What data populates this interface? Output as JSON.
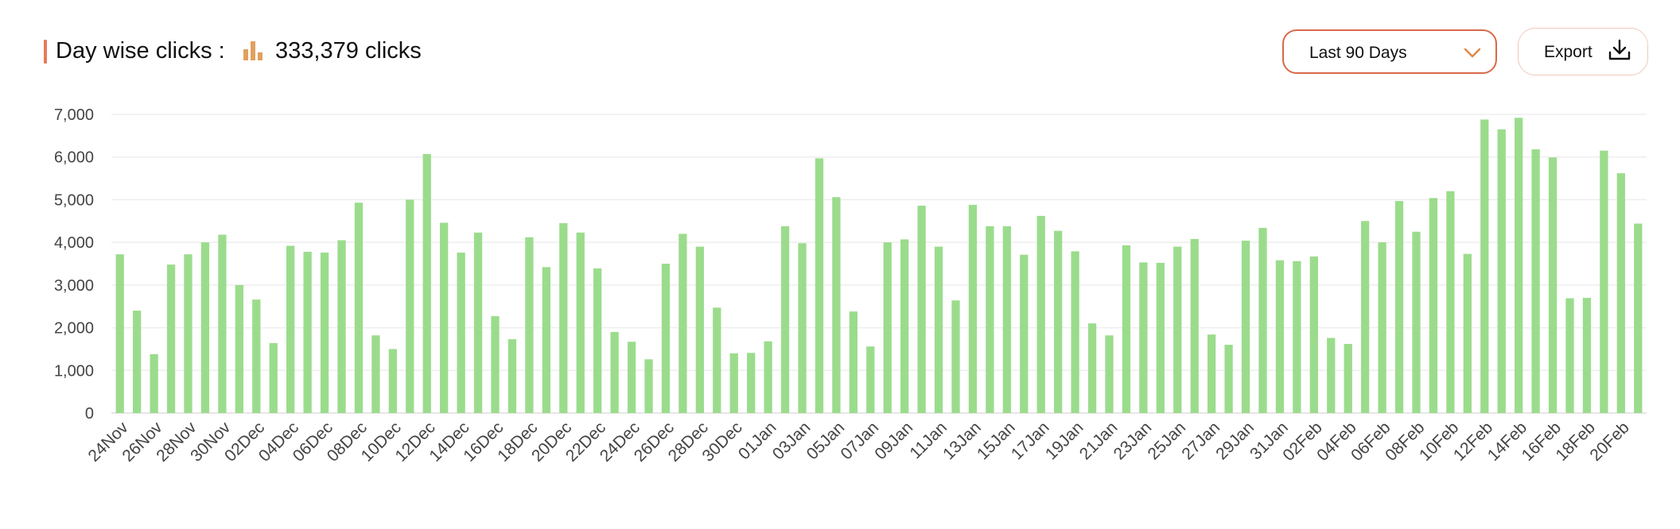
{
  "header": {
    "title": "Day wise clicks :",
    "total_clicks": "333,379 clicks",
    "range_select": {
      "selected": "Last 90 Days"
    },
    "export_label": "Export",
    "icons": [
      "bar-chart-icon",
      "chevron-down-icon",
      "download-icon"
    ]
  },
  "colors": {
    "accent": "#e67a5a",
    "bar": "#9bdc8c",
    "icon": "#e0a05e",
    "border": "#d9694a"
  },
  "chart_data": {
    "type": "bar",
    "title": "",
    "xlabel": "",
    "ylabel": "",
    "ylim": [
      0,
      7000
    ],
    "yticks": [
      "0",
      "1,000",
      "2,000",
      "3,000",
      "4,000",
      "5,000",
      "6,000",
      "7,000"
    ],
    "grid": true,
    "categories": [
      "24Nov",
      "25Nov",
      "26Nov",
      "27Nov",
      "28Nov",
      "29Nov",
      "30Nov",
      "01Dec",
      "02Dec",
      "03Dec",
      "04Dec",
      "05Dec",
      "06Dec",
      "07Dec",
      "08Dec",
      "09Dec",
      "10Dec",
      "11Dec",
      "12Dec",
      "13Dec",
      "14Dec",
      "15Dec",
      "16Dec",
      "17Dec",
      "18Dec",
      "19Dec",
      "20Dec",
      "21Dec",
      "22Dec",
      "23Dec",
      "24Dec",
      "25Dec",
      "26Dec",
      "27Dec",
      "28Dec",
      "29Dec",
      "30Dec",
      "31Dec",
      "01Jan",
      "02Jan",
      "03Jan",
      "04Jan",
      "05Jan",
      "06Jan",
      "07Jan",
      "08Jan",
      "09Jan",
      "10Jan",
      "11Jan",
      "12Jan",
      "13Jan",
      "14Jan",
      "15Jan",
      "16Jan",
      "17Jan",
      "18Jan",
      "19Jan",
      "20Jan",
      "21Jan",
      "22Jan",
      "23Jan",
      "24Jan",
      "25Jan",
      "26Jan",
      "27Jan",
      "28Jan",
      "29Jan",
      "30Jan",
      "31Jan",
      "01Feb",
      "02Feb",
      "03Feb",
      "04Feb",
      "05Feb",
      "06Feb",
      "07Feb",
      "08Feb",
      "09Feb",
      "10Feb",
      "11Feb",
      "12Feb",
      "13Feb",
      "14Feb",
      "15Feb",
      "16Feb",
      "17Feb",
      "18Feb",
      "19Feb",
      "20Feb",
      "21Feb"
    ],
    "x_tick_labels": [
      "24Nov",
      "26Nov",
      "28Nov",
      "30Nov",
      "02Dec",
      "04Dec",
      "06Dec",
      "08Dec",
      "10Dec",
      "12Dec",
      "14Dec",
      "16Dec",
      "18Dec",
      "20Dec",
      "22Dec",
      "24Dec",
      "26Dec",
      "28Dec",
      "30Dec",
      "01Jan",
      "03Jan",
      "05Jan",
      "07Jan",
      "09Jan",
      "11Jan",
      "13Jan",
      "15Jan",
      "17Jan",
      "19Jan",
      "21Jan",
      "23Jan",
      "25Jan",
      "27Jan",
      "29Jan",
      "31Jan",
      "02Feb",
      "04Feb",
      "06Feb",
      "08Feb",
      "10Feb",
      "12Feb",
      "14Feb",
      "16Feb",
      "18Feb",
      "20Feb"
    ],
    "series": [
      {
        "values": [
          3720,
          2400,
          1380,
          3480,
          3720,
          4000,
          4180,
          3000,
          2660,
          1640,
          3920,
          3780,
          3760,
          4050,
          4930,
          1820,
          1500,
          5000,
          6070,
          4460,
          3760,
          4230,
          2270,
          1730,
          4120,
          3420,
          4450,
          4230,
          3390,
          1900,
          1670,
          1260,
          3500,
          4200,
          3900,
          2470,
          1400,
          1410,
          1680,
          4380,
          3980,
          5970,
          5060,
          2380,
          1560,
          4000,
          4070,
          4860,
          3900,
          2640,
          4880,
          4380,
          4380,
          3710,
          4620,
          4270,
          3790,
          2100,
          1820,
          3930,
          3530,
          3520,
          3900,
          4080,
          1840,
          1600,
          4040,
          4340,
          3580,
          3560,
          3670,
          1760,
          1620,
          4500,
          4000,
          4970,
          4250,
          5040,
          5200,
          3730,
          6880,
          6650,
          6920,
          6180,
          5990,
          2690,
          2700,
          6150,
          5620,
          4440
        ]
      }
    ]
  }
}
